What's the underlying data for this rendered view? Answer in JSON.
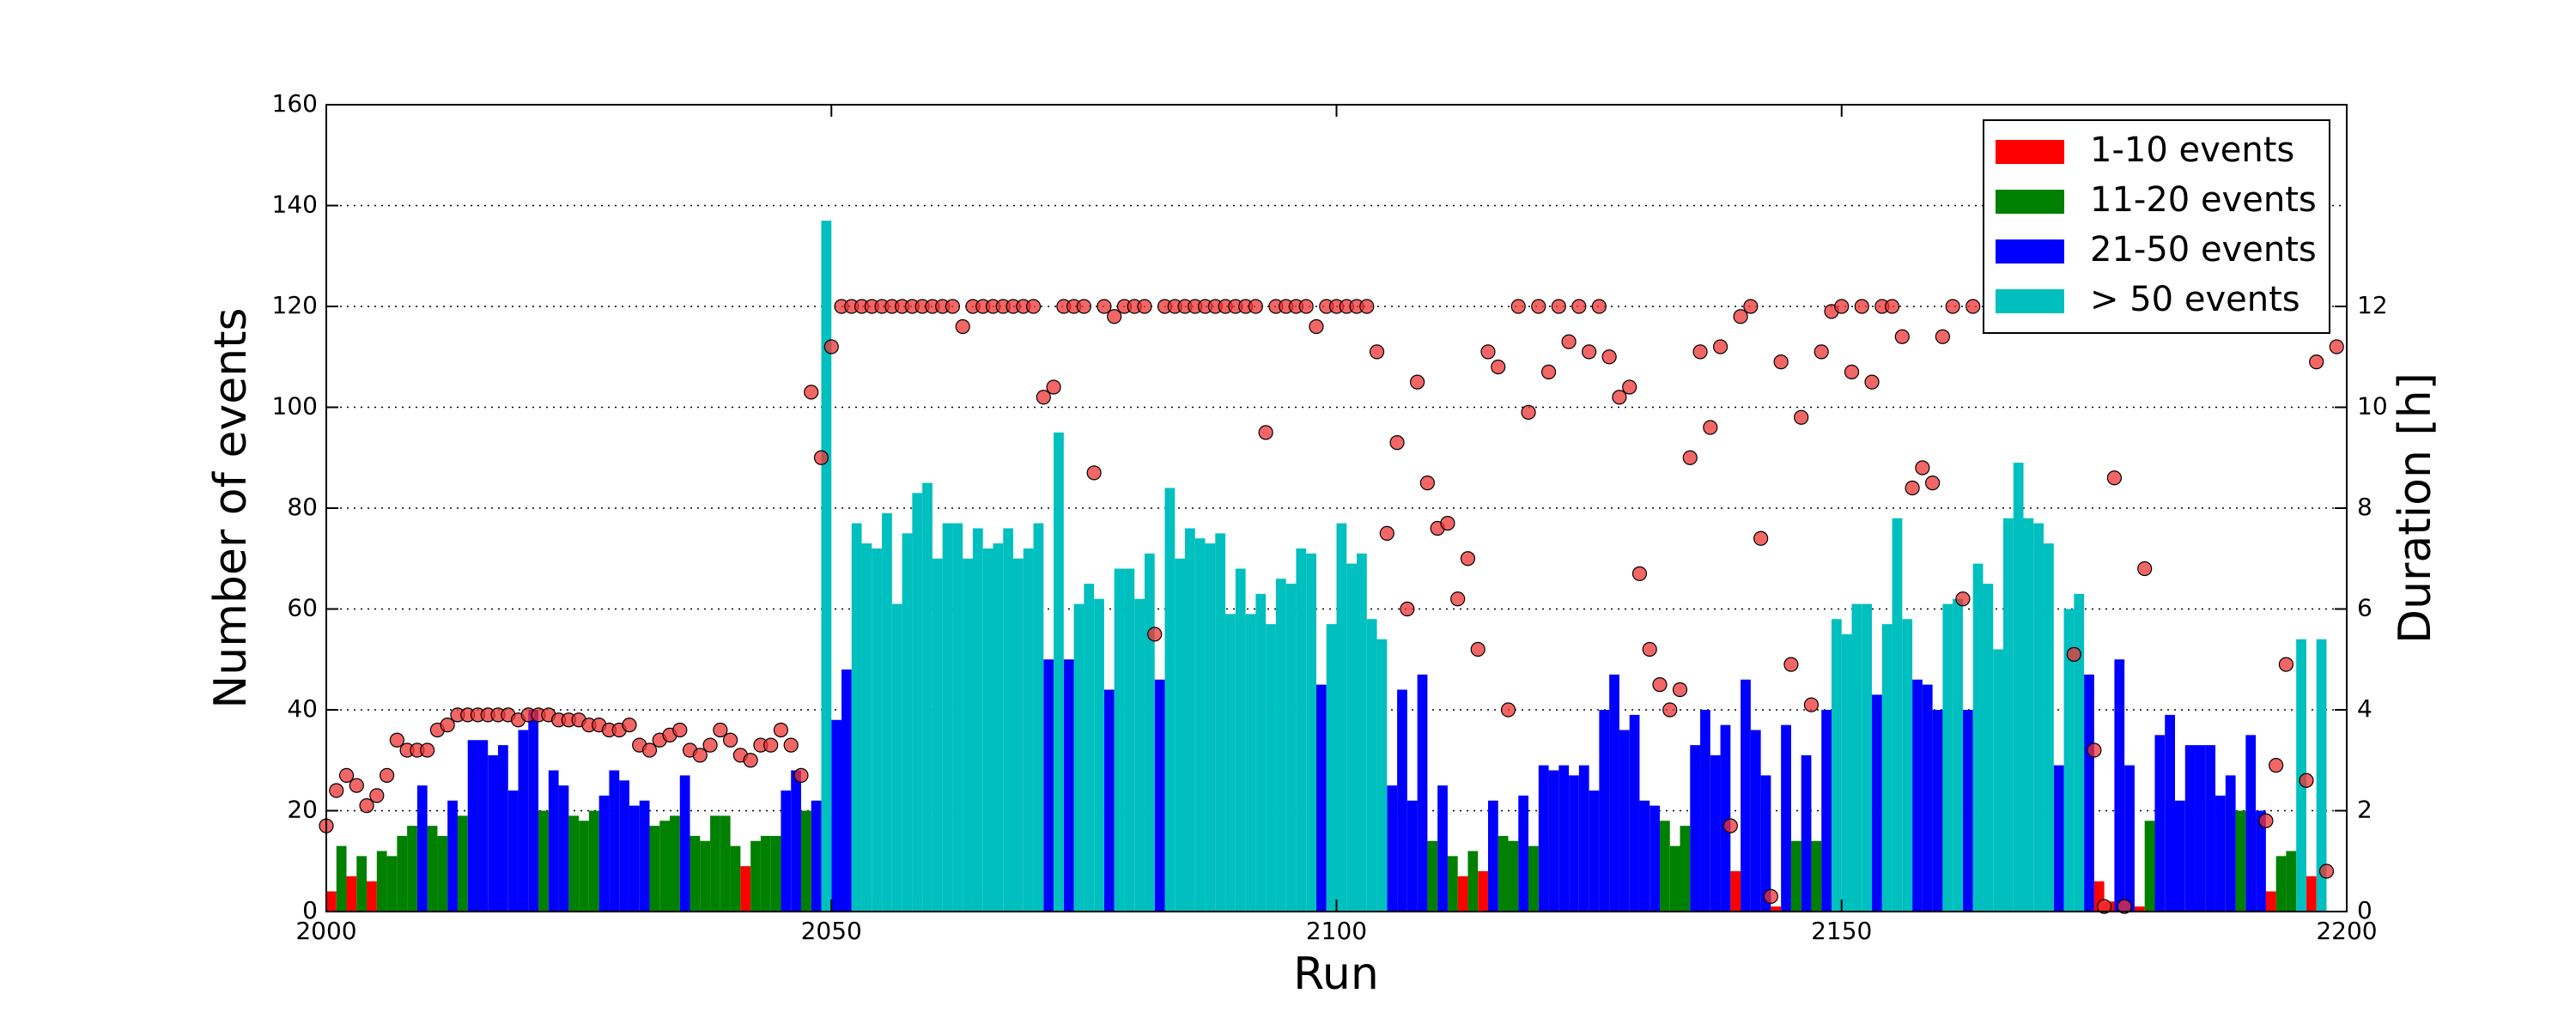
{
  "chart_data": {
    "type": "bar",
    "xlabel": "Run",
    "ylabel": "Number of events",
    "y2label": "Duration [h]",
    "xlim": [
      2000,
      2200
    ],
    "xticks": [
      2000,
      2050,
      2100,
      2150,
      2200
    ],
    "ylim": [
      0,
      160
    ],
    "yticks": [
      0,
      20,
      40,
      60,
      80,
      100,
      120,
      140,
      160
    ],
    "y2lim": [
      0,
      16
    ],
    "y2ticks": [
      0,
      2,
      4,
      6,
      8,
      10,
      12
    ],
    "grid": true,
    "legend": "upper right",
    "series": [
      {
        "name": "1-10 events",
        "color": "#ff0000",
        "x": [
          2000,
          2002,
          2004,
          2041,
          2112,
          2114,
          2139,
          2143,
          2175,
          2176,
          2179,
          2192,
          2196
        ],
        "values": [
          4,
          7,
          6,
          9,
          7,
          8,
          8,
          1,
          6,
          2,
          1,
          4,
          7
        ]
      },
      {
        "name": "11-20 events",
        "color": "#008000",
        "x": [
          2001,
          2003,
          2005,
          2006,
          2007,
          2008,
          2010,
          2011,
          2013,
          2021,
          2024,
          2025,
          2026,
          2032,
          2033,
          2034,
          2036,
          2037,
          2038,
          2039,
          2040,
          2042,
          2043,
          2044,
          2047,
          2109,
          2111,
          2113,
          2116,
          2117,
          2119,
          2132,
          2133,
          2134,
          2145,
          2147,
          2180,
          2189,
          2193,
          2194
        ],
        "values": [
          13,
          11,
          12,
          11,
          15,
          17,
          17,
          15,
          19,
          20,
          19,
          18,
          20,
          17,
          18,
          19,
          15,
          14,
          19,
          19,
          13,
          14,
          15,
          15,
          20,
          14,
          11,
          12,
          15,
          14,
          13,
          18,
          13,
          17,
          14,
          14,
          18,
          20,
          11,
          12
        ]
      },
      {
        "name": "21-50 events",
        "color": "#0000ff",
        "x": [
          2009,
          2012,
          2014,
          2015,
          2016,
          2017,
          2018,
          2019,
          2020,
          2022,
          2023,
          2027,
          2028,
          2029,
          2030,
          2031,
          2035,
          2045,
          2046,
          2048,
          2050,
          2051,
          2071,
          2073,
          2077,
          2082,
          2098,
          2105,
          2106,
          2107,
          2108,
          2110,
          2115,
          2118,
          2120,
          2121,
          2122,
          2123,
          2124,
          2125,
          2126,
          2127,
          2128,
          2129,
          2130,
          2131,
          2135,
          2136,
          2137,
          2138,
          2140,
          2141,
          2142,
          2144,
          2146,
          2148,
          2153,
          2157,
          2158,
          2159,
          2162,
          2171,
          2174,
          2177,
          2178,
          2181,
          2182,
          2183,
          2184,
          2185,
          2186,
          2187,
          2188,
          2190,
          2191
        ],
        "values": [
          25,
          22,
          34,
          34,
          31,
          33,
          24,
          36,
          40,
          28,
          25,
          23,
          28,
          26,
          21,
          22,
          27,
          24,
          28,
          22,
          38,
          48,
          50,
          50,
          44,
          46,
          45,
          25,
          44,
          22,
          47,
          25,
          22,
          23,
          29,
          28,
          29,
          27,
          29,
          24,
          40,
          47,
          36,
          39,
          22,
          21,
          33,
          40,
          31,
          37,
          46,
          36,
          27,
          37,
          31,
          40,
          43,
          46,
          45,
          40,
          40,
          29,
          47,
          50,
          29,
          35,
          39,
          22,
          33,
          33,
          33,
          23,
          27,
          35,
          20
        ]
      },
      {
        "name": "> 50 events",
        "color": "#00bfbf",
        "x": [
          2049,
          2052,
          2053,
          2054,
          2055,
          2056,
          2057,
          2058,
          2059,
          2060,
          2061,
          2062,
          2063,
          2064,
          2065,
          2066,
          2067,
          2068,
          2069,
          2070,
          2072,
          2074,
          2075,
          2076,
          2078,
          2079,
          2080,
          2081,
          2083,
          2084,
          2085,
          2086,
          2087,
          2088,
          2089,
          2090,
          2091,
          2092,
          2093,
          2094,
          2095,
          2096,
          2097,
          2099,
          2100,
          2101,
          2102,
          2103,
          2104,
          2149,
          2150,
          2151,
          2152,
          2154,
          2155,
          2156,
          2160,
          2161,
          2163,
          2164,
          2165,
          2166,
          2167,
          2168,
          2169,
          2170,
          2172,
          2173,
          2195,
          2197
        ],
        "values": [
          137,
          77,
          73,
          72,
          79,
          61,
          75,
          83,
          85,
          70,
          77,
          77,
          70,
          76,
          72,
          73,
          76,
          70,
          72,
          77,
          95,
          61,
          65,
          62,
          68,
          68,
          62,
          71,
          84,
          70,
          76,
          74,
          73,
          75,
          59,
          68,
          59,
          63,
          57,
          66,
          65,
          72,
          71,
          57,
          77,
          69,
          71,
          58,
          54,
          58,
          55,
          61,
          61,
          57,
          78,
          58,
          61,
          62,
          69,
          65,
          52,
          78,
          89,
          78,
          77,
          73,
          60,
          63,
          54,
          54
        ]
      },
      {
        "type": "scatter",
        "axis": "y2",
        "color": "#ee3333",
        "x": [
          2000,
          2001,
          2002,
          2003,
          2004,
          2005,
          2006,
          2007,
          2008,
          2009,
          2010,
          2011,
          2012,
          2013,
          2014,
          2015,
          2016,
          2017,
          2018,
          2019,
          2020,
          2021,
          2022,
          2023,
          2024,
          2025,
          2026,
          2027,
          2028,
          2029,
          2030,
          2031,
          2032,
          2033,
          2034,
          2035,
          2036,
          2037,
          2038,
          2039,
          2040,
          2041,
          2042,
          2043,
          2044,
          2045,
          2046,
          2047,
          2048,
          2049,
          2050,
          2051,
          2052,
          2053,
          2054,
          2055,
          2056,
          2057,
          2058,
          2059,
          2060,
          2061,
          2062,
          2063,
          2064,
          2065,
          2066,
          2067,
          2068,
          2069,
          2070,
          2071,
          2072,
          2073,
          2074,
          2075,
          2076,
          2077,
          2078,
          2079,
          2080,
          2081,
          2082,
          2083,
          2084,
          2085,
          2086,
          2087,
          2088,
          2089,
          2090,
          2091,
          2092,
          2093,
          2094,
          2095,
          2096,
          2097,
          2098,
          2099,
          2100,
          2101,
          2102,
          2103,
          2104,
          2105,
          2106,
          2107,
          2108,
          2109,
          2110,
          2111,
          2112,
          2113,
          2114,
          2115,
          2116,
          2117,
          2118,
          2119,
          2120,
          2121,
          2122,
          2123,
          2124,
          2125,
          2126,
          2127,
          2128,
          2129,
          2130,
          2131,
          2132,
          2133,
          2134,
          2135,
          2136,
          2137,
          2138,
          2139,
          2140,
          2141,
          2142,
          2143,
          2144,
          2145,
          2146,
          2147,
          2148,
          2149,
          2150,
          2151,
          2152,
          2153,
          2154,
          2155,
          2156,
          2157,
          2158,
          2159,
          2160,
          2161,
          2162,
          2163,
          2173,
          2175,
          2176,
          2177,
          2178,
          2180,
          2192,
          2193,
          2194,
          2196,
          2197,
          2198,
          2199
        ],
        "values": [
          1.7,
          2.4,
          2.7,
          2.5,
          2.1,
          2.3,
          2.7,
          3.4,
          3.2,
          3.2,
          3.2,
          3.6,
          3.7,
          3.9,
          3.9,
          3.9,
          3.9,
          3.9,
          3.9,
          3.8,
          3.9,
          3.9,
          3.9,
          3.8,
          3.8,
          3.8,
          3.7,
          3.7,
          3.6,
          3.6,
          3.7,
          3.3,
          3.2,
          3.4,
          3.5,
          3.6,
          3.2,
          3.1,
          3.3,
          3.6,
          3.4,
          3.1,
          3.0,
          3.3,
          3.3,
          3.6,
          3.3,
          2.7,
          10.3,
          9.0,
          11.2,
          12,
          12,
          12,
          12,
          12,
          12,
          12,
          12,
          12,
          12,
          12,
          12,
          11.6,
          12,
          12,
          12,
          12,
          12,
          12,
          12,
          10.2,
          10.4,
          12,
          12,
          12,
          8.7,
          12,
          11.8,
          12,
          12,
          12,
          5.5,
          12,
          12,
          12,
          12,
          12,
          12,
          12,
          12,
          12,
          12,
          9.5,
          12,
          12,
          12,
          12,
          11.6,
          12,
          12,
          12,
          12,
          12,
          11.1,
          7.5,
          9.3,
          6.0,
          10.5,
          8.5,
          7.6,
          7.7,
          6.2,
          7.0,
          5.2,
          11.1,
          10.8,
          4.0,
          12,
          9.9,
          12,
          10.7,
          12,
          11.3,
          12,
          11.1,
          12,
          11.0,
          10.2,
          10.4,
          6.7,
          5.2,
          4.5,
          4.0,
          4.4,
          9.0,
          11.1,
          9.6,
          11.2,
          1.7,
          11.8,
          12,
          7.4,
          0.3,
          10.9,
          4.9,
          9.8,
          4.1,
          11.1,
          11.9,
          12,
          10.7,
          12,
          10.5,
          12,
          12,
          11.4,
          8.4,
          8.8,
          8.5,
          11.4,
          12,
          6.2,
          12,
          5.1,
          3.2,
          0.1,
          8.6,
          0.1,
          6.8,
          1.8,
          2.9,
          4.9,
          2.6,
          10.9,
          0.8,
          11.2
        ]
      }
    ]
  }
}
